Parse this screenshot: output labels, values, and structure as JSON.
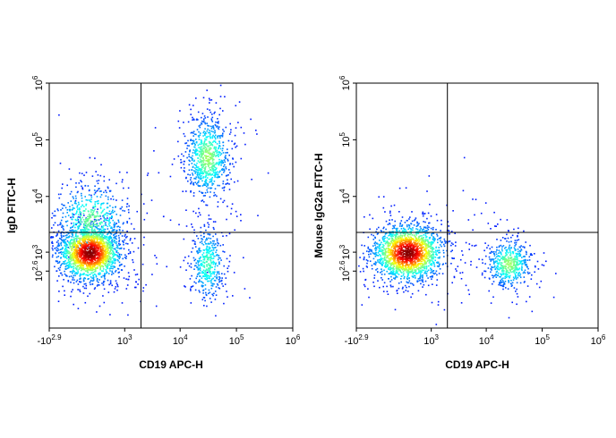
{
  "chart_data": [
    {
      "type": "density",
      "x_label": "CD19 APC-H",
      "y_label": "IgD FITC-H",
      "xscale": "biexponential",
      "yscale": "biexponential",
      "xlim": [
        -794,
        1000000
      ],
      "ylim": [
        -794,
        1000000
      ],
      "xticks": [
        {
          "value": -794,
          "label": "-10",
          "exponent": "2.9"
        },
        {
          "value": 1000,
          "label": "10",
          "exponent": "3"
        },
        {
          "value": 10000,
          "label": "10",
          "exponent": "4"
        },
        {
          "value": 100000,
          "label": "10",
          "exponent": "5"
        },
        {
          "value": 1000000,
          "label": "10",
          "exponent": "6"
        }
      ],
      "yticks": [
        {
          "value": 398,
          "label": "10",
          "exponent": "2.6"
        },
        {
          "value": 1000,
          "label": "10",
          "exponent": "3"
        },
        {
          "value": 10000,
          "label": "10",
          "exponent": "4"
        },
        {
          "value": 100000,
          "label": "10",
          "exponent": "5"
        },
        {
          "value": 1000000,
          "label": "10",
          "exponent": "6"
        }
      ],
      "gates": {
        "x": 2000,
        "y": 2300
      },
      "populations": [
        {
          "x": 80,
          "y": 1000
        },
        {
          "x": 100,
          "y": 4000
        },
        {
          "x": 30000,
          "y": 50000
        },
        {
          "x": 30000,
          "y": 600
        }
      ]
    },
    {
      "type": "density",
      "x_label": "CD19 APC-H",
      "y_label": "Mouse IgG2a FITC-H",
      "xscale": "biexponential",
      "yscale": "biexponential",
      "xlim": [
        -794,
        1000000
      ],
      "ylim": [
        -794,
        1000000
      ],
      "xticks": [
        {
          "value": -794,
          "label": "-10",
          "exponent": "2.9"
        },
        {
          "value": 1000,
          "label": "10",
          "exponent": "3"
        },
        {
          "value": 10000,
          "label": "10",
          "exponent": "4"
        },
        {
          "value": 100000,
          "label": "10",
          "exponent": "5"
        },
        {
          "value": 1000000,
          "label": "10",
          "exponent": "6"
        }
      ],
      "yticks": [
        {
          "value": 398,
          "label": "10",
          "exponent": "2.6"
        },
        {
          "value": 1000,
          "label": "10",
          "exponent": "3"
        },
        {
          "value": 10000,
          "label": "10",
          "exponent": "4"
        },
        {
          "value": 100000,
          "label": "10",
          "exponent": "5"
        },
        {
          "value": 1000000,
          "label": "10",
          "exponent": "6"
        }
      ],
      "gates": {
        "x": 2000,
        "y": 2300
      },
      "populations": [
        {
          "x": 280,
          "y": 1000
        },
        {
          "x": 25000,
          "y": 600
        }
      ]
    }
  ]
}
